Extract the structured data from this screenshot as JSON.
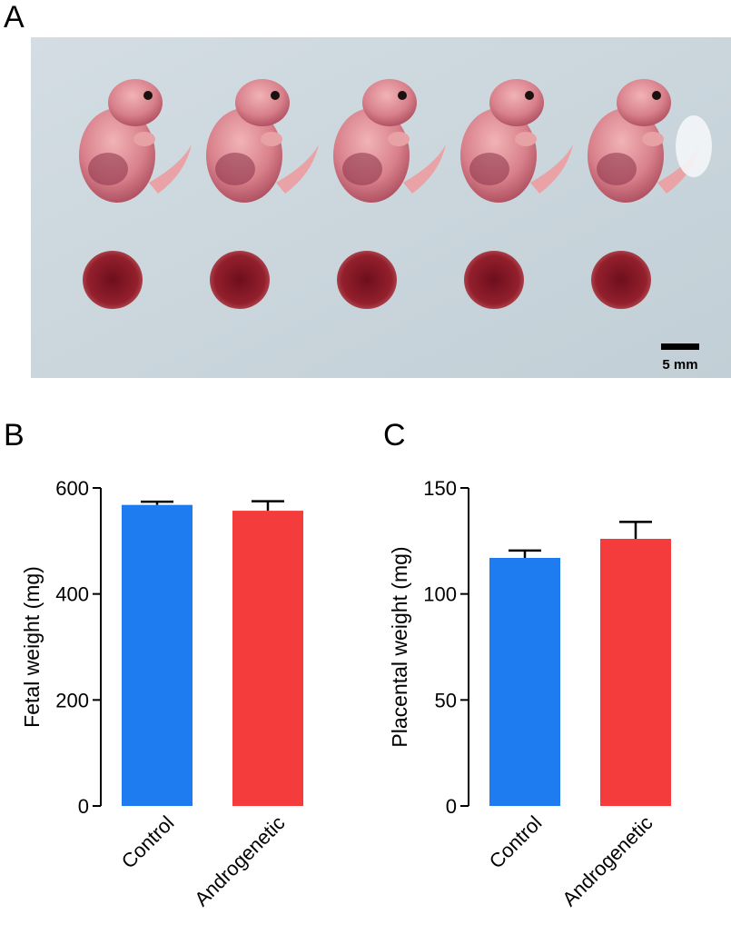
{
  "figure": {
    "panels": [
      {
        "letter": "A"
      },
      {
        "letter": "B"
      },
      {
        "letter": "C"
      }
    ],
    "photo": {
      "scale_bar_label": "5 mm",
      "background_color": "#c9d6dd",
      "embryo_color": "#d9848e",
      "placenta_color": "#8a1e28"
    }
  },
  "chart_data": [
    {
      "type": "bar",
      "categories": [
        "Control",
        "Androgenetic"
      ],
      "values": [
        568,
        557
      ],
      "errors": [
        6,
        18
      ],
      "colors": [
        "#1e7cf0",
        "#f53c3c"
      ],
      "ylabel": "Fetal weight (mg)",
      "ylim": [
        0,
        600
      ],
      "yticks": [
        0,
        200,
        400,
        600
      ],
      "grid": false
    },
    {
      "type": "bar",
      "categories": [
        "Control",
        "Androgenetic"
      ],
      "values": [
        117,
        126
      ],
      "errors": [
        3.5,
        8
      ],
      "colors": [
        "#1e7cf0",
        "#f53c3c"
      ],
      "ylabel": "Placental weight (mg)",
      "ylim": [
        0,
        150
      ],
      "yticks": [
        0,
        50,
        100,
        150
      ],
      "grid": false
    }
  ]
}
